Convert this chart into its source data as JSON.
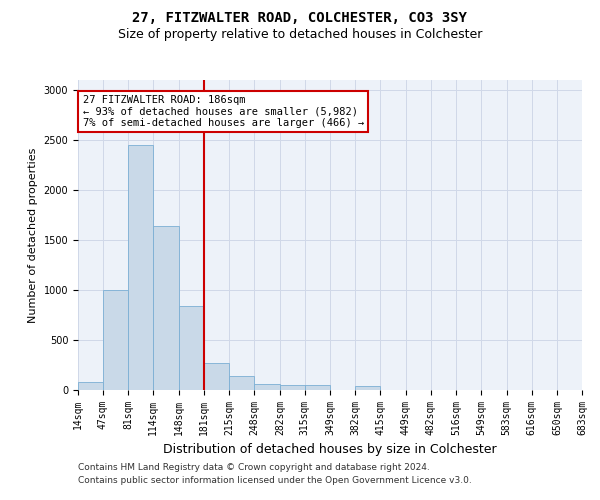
{
  "title1": "27, FITZWALTER ROAD, COLCHESTER, CO3 3SY",
  "title2": "Size of property relative to detached houses in Colchester",
  "xlabel": "Distribution of detached houses by size in Colchester",
  "ylabel": "Number of detached properties",
  "annotation_line1": "27 FITZWALTER ROAD: 186sqm",
  "annotation_line2": "← 93% of detached houses are smaller (5,982)",
  "annotation_line3": "7% of semi-detached houses are larger (466) →",
  "footer_line1": "Contains HM Land Registry data © Crown copyright and database right 2024.",
  "footer_line2": "Contains public sector information licensed under the Open Government Licence v3.0.",
  "bar_edges": [
    14,
    47,
    81,
    114,
    148,
    181,
    215,
    248,
    282,
    315,
    349,
    382,
    415,
    449,
    482,
    516,
    549,
    583,
    616,
    650,
    683
  ],
  "bar_heights": [
    80,
    1000,
    2450,
    1640,
    840,
    270,
    140,
    60,
    50,
    50,
    0,
    40,
    0,
    0,
    0,
    0,
    0,
    0,
    0,
    0
  ],
  "bar_color": "#c9d9e8",
  "bar_edgecolor": "#7bafd4",
  "vline_x": 181,
  "vline_color": "#cc0000",
  "annotation_box_edgecolor": "#cc0000",
  "annotation_box_facecolor": "#ffffff",
  "grid_color": "#d0d8e8",
  "bg_color": "#edf2f9",
  "ylim_max": 3100,
  "yticks": [
    0,
    500,
    1000,
    1500,
    2000,
    2500,
    3000
  ],
  "title1_fontsize": 10,
  "title2_fontsize": 9,
  "xlabel_fontsize": 9,
  "ylabel_fontsize": 8,
  "tick_fontsize": 7,
  "annotation_fontsize": 7.5,
  "footer_fontsize": 6.5
}
